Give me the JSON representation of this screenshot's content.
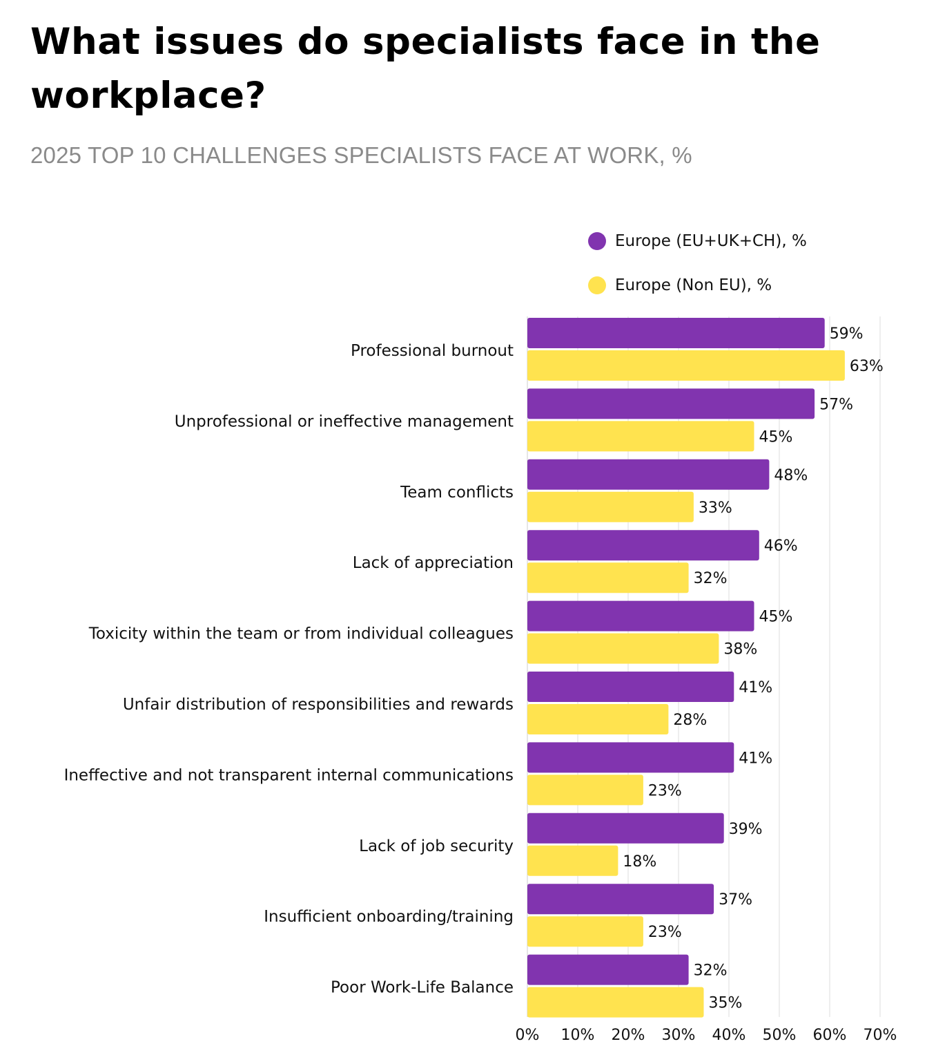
{
  "title": "What issues do specialists face in the workplace?",
  "subtitle": "2025 TOP 10 CHALLENGES SPECIALISTS FACE AT WORK, %",
  "colors": {
    "series1": "#8134AF",
    "series2": "#FFE34F",
    "grid": "#dddddd"
  },
  "chart_data": {
    "type": "bar",
    "orientation": "horizontal",
    "title": "What issues do specialists face in the workplace?",
    "subtitle": "2025 TOP 10 CHALLENGES SPECIALISTS FACE AT WORK, %",
    "categories": [
      "Professional burnout",
      "Unprofessional or ineffective management",
      "Team conflicts",
      "Lack of appreciation",
      "Toxicity within the team or from individual colleagues",
      "Unfair distribution of responsibilities and rewards",
      "Ineffective and not transparent internal communications",
      "Lack of job security",
      "Insufficient onboarding/training",
      "Poor Work-Life Balance"
    ],
    "series": [
      {
        "name": "Europe (EU+UK+CH), %",
        "values": [
          59,
          57,
          48,
          46,
          45,
          41,
          41,
          39,
          37,
          32
        ]
      },
      {
        "name": "Europe (Non EU), %",
        "values": [
          63,
          45,
          33,
          32,
          38,
          28,
          23,
          18,
          23,
          35
        ]
      }
    ],
    "value_suffix": "%",
    "xlim": [
      0,
      70
    ],
    "xticks": [
      "0%",
      "10%",
      "20%",
      "30%",
      "40%",
      "50%",
      "60%",
      "70%"
    ],
    "grid": true,
    "legend_position": "top-right",
    "xlabel": "",
    "ylabel": ""
  }
}
